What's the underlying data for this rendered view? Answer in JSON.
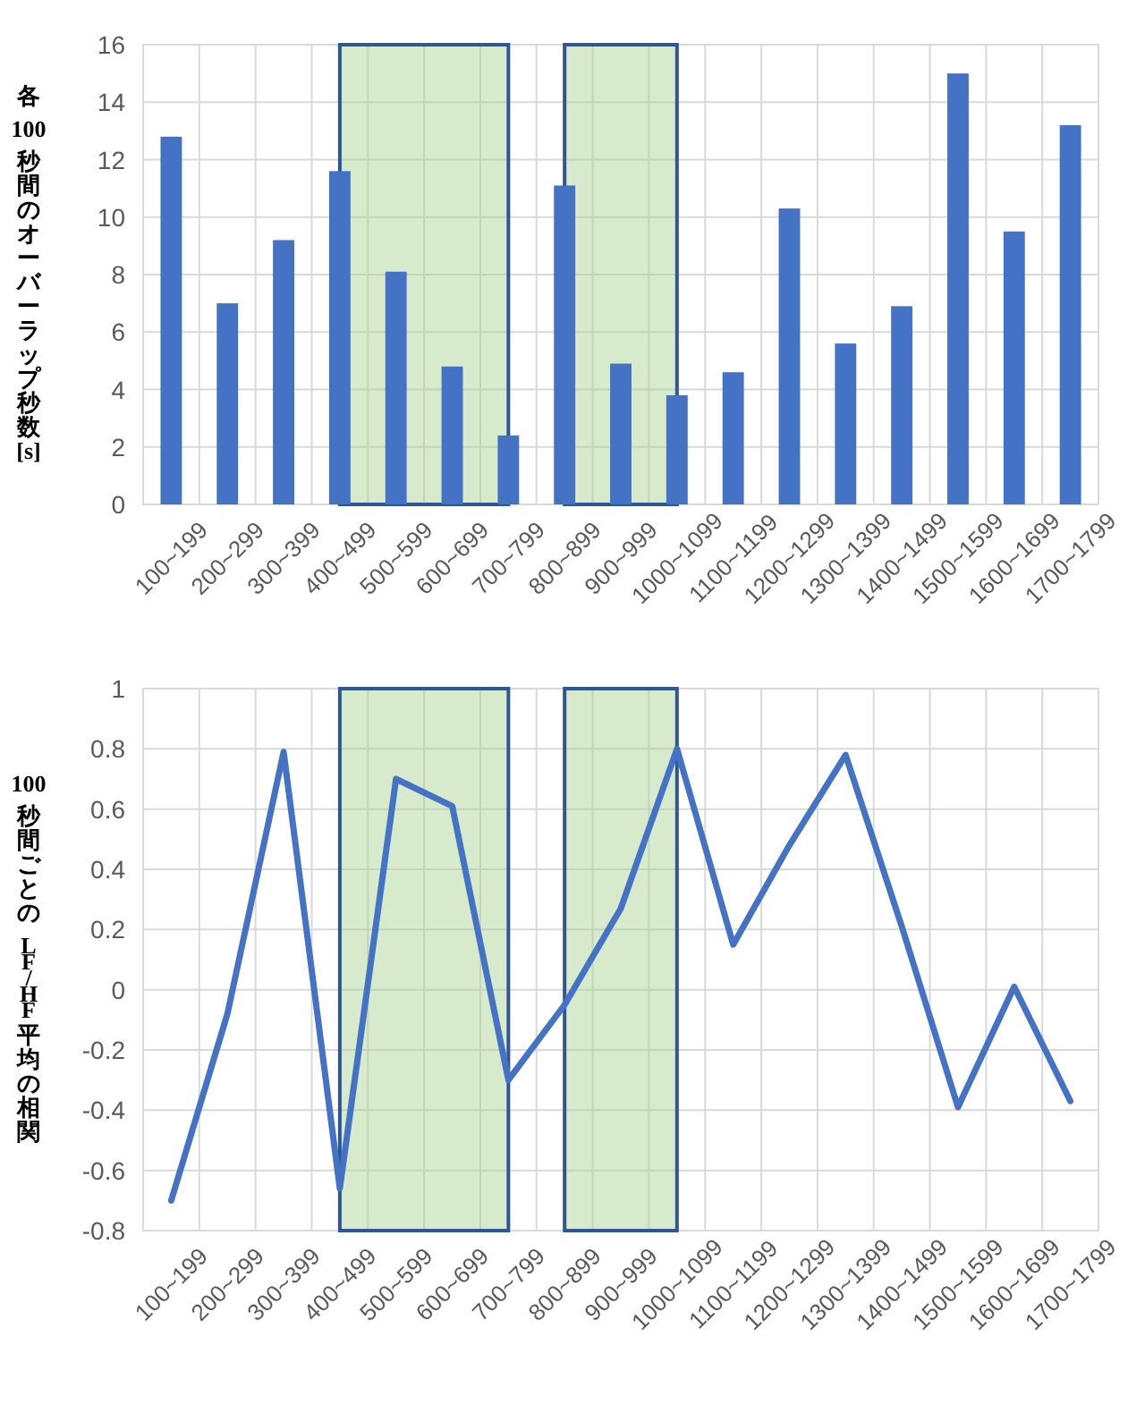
{
  "chart_data": [
    {
      "type": "bar",
      "ylabel": "各 100 秒間のオーバーラップ秒数[s]",
      "categories": [
        "100~199",
        "200~299",
        "300~399",
        "400~499",
        "500~599",
        "600~699",
        "700~799",
        "800~899",
        "900~999",
        "1000~1099",
        "1100~1199",
        "1200~1299",
        "1300~1399",
        "1400~1499",
        "1500~1599",
        "1600~1699",
        "1700~1799"
      ],
      "values": [
        12.8,
        7.0,
        9.2,
        11.6,
        8.1,
        4.8,
        2.4,
        11.1,
        4.9,
        3.8,
        4.6,
        10.3,
        5.6,
        6.9,
        15.0,
        9.5,
        13.2
      ],
      "color": "#4472c4",
      "ylim": [
        0,
        16
      ],
      "yticks": [
        0,
        2,
        4,
        6,
        8,
        10,
        12,
        14,
        16
      ],
      "grid": true,
      "bands": [
        {
          "axis": "x",
          "from": "400~499",
          "to": "700~799",
          "color": "#a9d18e"
        },
        {
          "axis": "x",
          "from": "800~899",
          "to": "1000~1099",
          "color": "#a9d18e"
        }
      ]
    },
    {
      "type": "line",
      "ylabel": "100 秒間ごとの LF/HF 平均の相関",
      "categories": [
        "100~199",
        "200~299",
        "300~399",
        "400~499",
        "500~599",
        "600~699",
        "700~799",
        "800~899",
        "900~999",
        "1000~1099",
        "1100~1199",
        "1200~1299",
        "1300~1399",
        "1400~1499",
        "1500~1599",
        "1600~1699",
        "1700~1799"
      ],
      "values": [
        -0.7,
        -0.08,
        0.79,
        -0.66,
        0.7,
        0.61,
        -0.3,
        -0.05,
        0.27,
        0.8,
        0.15,
        0.48,
        0.78,
        0.21,
        -0.39,
        0.01,
        -0.37
      ],
      "color": "#4472c4",
      "ylim": [
        -0.8,
        1
      ],
      "yticks": [
        -0.8,
        -0.6,
        -0.4,
        -0.2,
        0,
        0.2,
        0.4,
        0.6,
        0.8,
        1
      ],
      "grid": true,
      "marker": "none",
      "line_style": "solid",
      "bands": [
        {
          "axis": "x",
          "from": "400~499",
          "to": "700~799",
          "color": "#a9d18e"
        },
        {
          "axis": "x",
          "from": "800~899",
          "to": "1000~1099",
          "color": "#a9d18e"
        }
      ]
    }
  ]
}
